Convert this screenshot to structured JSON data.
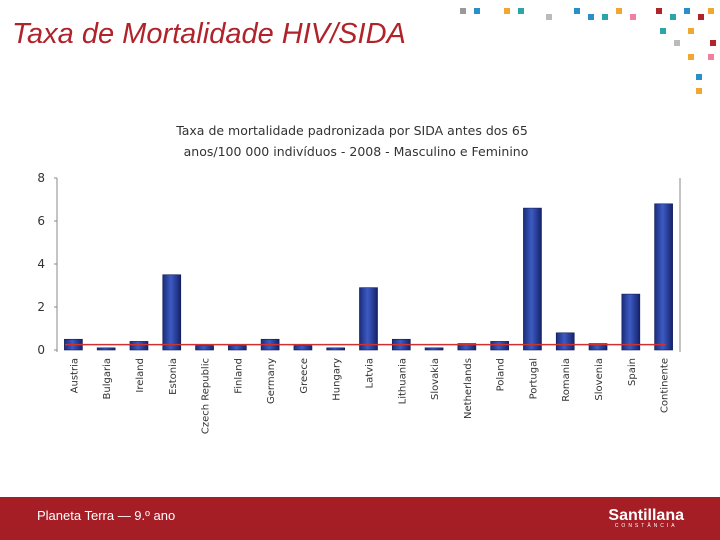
{
  "header": {
    "title": "Taxa de Mortalidade HIV/SIDA"
  },
  "footer": {
    "text": "Planeta Terra — 9.º ano",
    "logo": "Santillana",
    "logo_sub": "CONSTÂNCIA"
  },
  "chart_data": {
    "type": "bar",
    "title": [
      "Taxa de mortalidade padronizada por SIDA antes dos 65",
      "anos/100 000 indivíduos - 2008 - Masculino e Feminino"
    ],
    "categories": [
      "Austria",
      "Bulgaria",
      "Ireland",
      "Estonia",
      "Czech Republic",
      "Finland",
      "Germany",
      "Greece",
      "Hungary",
      "Latvia",
      "Lithuania",
      "Slovakia",
      "Netherlands",
      "Poland",
      "Portugal",
      "Romania",
      "Slovenia",
      "Spain",
      "Continente"
    ],
    "values": [
      0.5,
      0.1,
      0.4,
      3.5,
      0.2,
      0.2,
      0.5,
      0.2,
      0.1,
      2.9,
      0.5,
      0.1,
      0.3,
      0.4,
      6.6,
      0.8,
      0.3,
      2.6,
      6.8
    ],
    "color": "#2a45a8",
    "reference_line": 0.25,
    "reference_color": "#d03030",
    "ylim": [
      0,
      8
    ],
    "yticks": [
      0,
      2,
      4,
      6,
      8
    ],
    "grid": false
  }
}
